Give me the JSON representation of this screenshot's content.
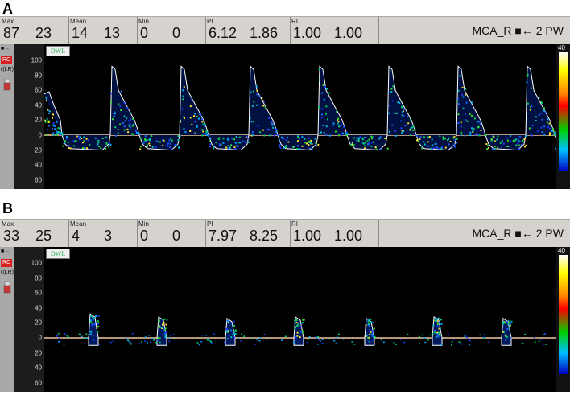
{
  "panels": [
    {
      "letter": "A",
      "max": {
        "label": "Max",
        "v1": "87",
        "v2": "23"
      },
      "mean": {
        "label": "Mean",
        "v1": "14",
        "v2": "13"
      },
      "min": {
        "label": "Min",
        "v1": "0",
        "v2": "0"
      },
      "pi": {
        "label": "PI",
        "v1": "6.12",
        "v2": "1.86"
      },
      "ri": {
        "label": "RI",
        "v1": "1.00",
        "v2": "1.00"
      },
      "probe": "MCA_R ■← 2 PW"
    },
    {
      "letter": "B",
      "max": {
        "label": "Max",
        "v1": "33",
        "v2": "25"
      },
      "mean": {
        "label": "Mean",
        "v1": "4",
        "v2": "3"
      },
      "min": {
        "label": "Min",
        "v1": "0",
        "v2": "0"
      },
      "pi": {
        "label": "PI",
        "v1": "7.97",
        "v2": "8.25"
      },
      "ri": {
        "label": "RI",
        "v1": "1.00",
        "v2": "1.00"
      },
      "probe": "MCA_R ■← 2 PW"
    }
  ],
  "sidebar": {
    "arrow": "■←",
    "rc": "RC",
    "lr": "((LR))"
  },
  "scale_ticks": [
    "100",
    "80",
    "60",
    "40",
    "20",
    "0",
    "20",
    "40",
    "60"
  ],
  "colorbar_max": "40",
  "logo": "DWL",
  "colors": {
    "baseline": "#f0c8a0",
    "envelope": "#ffffff",
    "header_bg": "#d6d3cf"
  }
}
